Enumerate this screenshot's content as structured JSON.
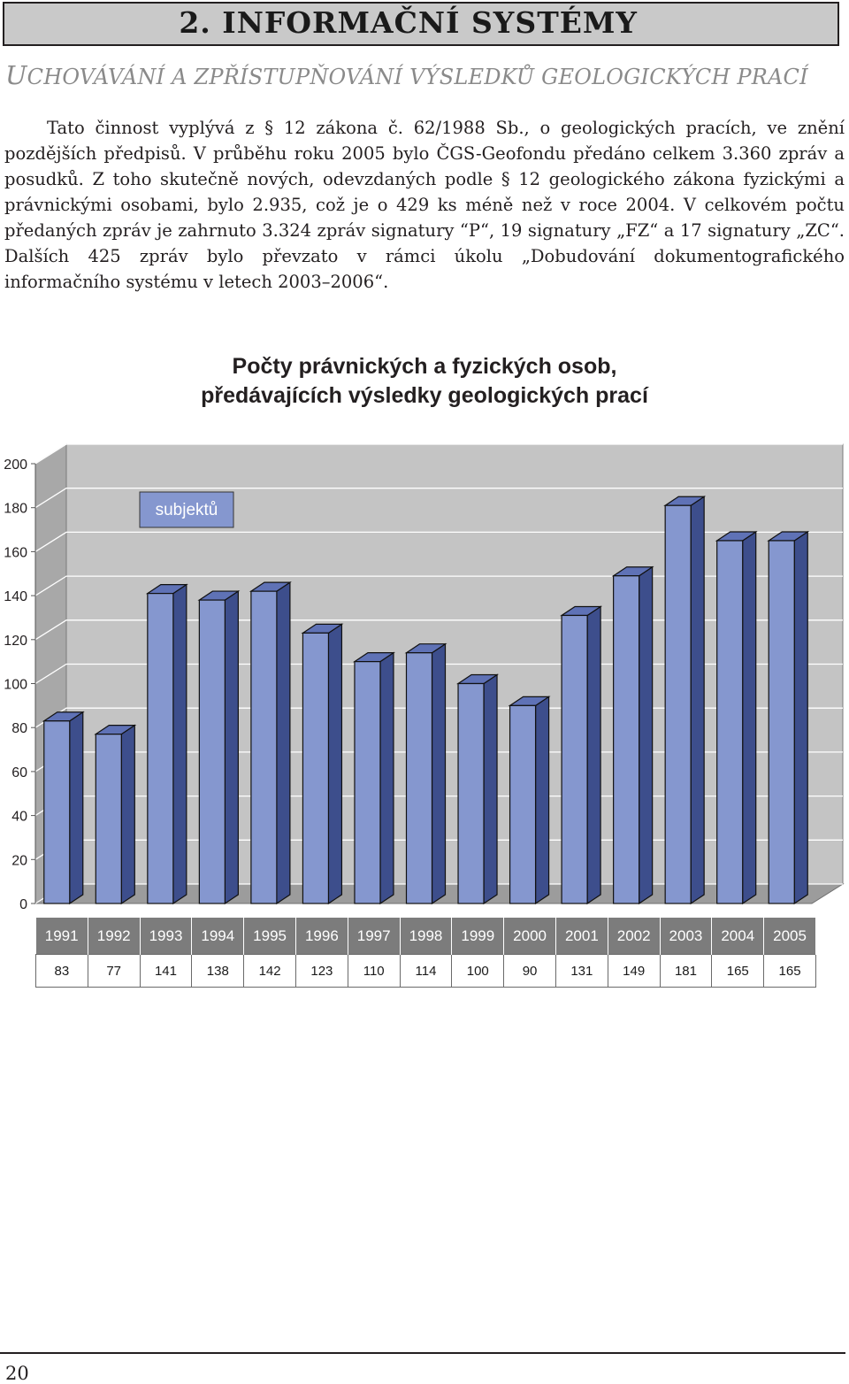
{
  "header": {
    "chapter_title": "2. INFORMAČNÍ SYSTÉMY"
  },
  "section": {
    "heading_first": "U",
    "heading_rest": "CHOVÁVÁNÍ A ZPŘÍSTUPŇOVÁNÍ VÝSLEDKŮ GEOLOGICKÝCH PRACÍ"
  },
  "body": {
    "paragraph": "Tato činnost vyplývá z § 12 zákona č. 62/1988 Sb., o geologických pracích, ve znění pozdějších předpisů. V průběhu roku 2005 bylo ČGS-Geofondu předáno celkem 3.360 zpráv a posudků. Z toho skutečně nových, odevzdaných podle § 12 geologického zákona fyzickými a právnickými osobami, bylo 2.935, což je o 429 ks méně než v roce 2004. V celkovém počtu předaných zpráv je zahrnuto 3.324 zpráv signatury “P“, 19 signatury „FZ“ a 17 signatury „ZC“. Dalších 425 zpráv bylo převzato v rámci úkolu „Dobudování dokumentografického informačního systému v letech 2003–2006“."
  },
  "chart_data": {
    "type": "bar",
    "title_line1": "Počty právnických a fyzických osob,",
    "title_line2": "předávajících výsledky geologických prací",
    "categories": [
      "1991",
      "1992",
      "1993",
      "1994",
      "1995",
      "1996",
      "1997",
      "1998",
      "1999",
      "2000",
      "2001",
      "2002",
      "2003",
      "2004",
      "2005"
    ],
    "series": [
      {
        "name": "subjektů",
        "values": [
          83,
          77,
          141,
          138,
          142,
          123,
          110,
          114,
          100,
          90,
          131,
          149,
          181,
          165,
          165
        ]
      }
    ],
    "value_labels": [
      "83",
      "77",
      "141",
      "138",
      "142",
      "123",
      "110",
      "114",
      "100",
      "90",
      "131",
      "149",
      "181",
      "165",
      "165"
    ],
    "ylim": [
      0,
      200
    ],
    "yticks": [
      "0",
      "20",
      "40",
      "60",
      "80",
      "100",
      "120",
      "140",
      "160",
      "180",
      "200"
    ],
    "legend_position": "top-left",
    "style": "3d-bars",
    "grid": true,
    "colors": {
      "bar_front": "#8597cf",
      "bar_side": "#3d4e8c",
      "bar_top": "#5f72b6",
      "back_wall": "#c4c4c4",
      "floor": "#9c9c9c",
      "table_header": "#7c7c7c"
    }
  },
  "footer": {
    "page_number": "20"
  }
}
